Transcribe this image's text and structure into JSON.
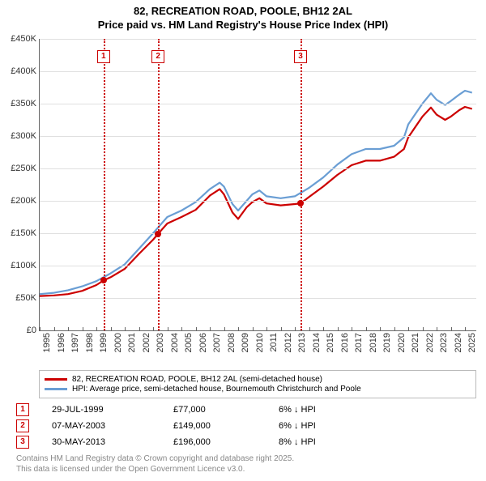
{
  "title_line1": "82, RECREATION ROAD, POOLE, BH12 2AL",
  "title_line2": "Price paid vs. HM Land Registry's House Price Index (HPI)",
  "chart": {
    "type": "line",
    "x_start": 1995,
    "x_end": 2025.8,
    "years": [
      1995,
      1996,
      1997,
      1998,
      1999,
      2000,
      2001,
      2002,
      2003,
      2004,
      2005,
      2006,
      2007,
      2008,
      2009,
      2010,
      2011,
      2012,
      2013,
      2014,
      2015,
      2016,
      2017,
      2018,
      2019,
      2020,
      2021,
      2022,
      2023,
      2024,
      2025
    ],
    "ylim": [
      0,
      450000
    ],
    "ytick_step": 50000,
    "yticklabels": [
      "£0",
      "£50K",
      "£100K",
      "£150K",
      "£200K",
      "£250K",
      "£300K",
      "£350K",
      "£400K",
      "£450K"
    ],
    "grid_color": "#e0e0e0",
    "axis_color": "#666666",
    "background_color": "#ffffff",
    "series": [
      {
        "name": "price_paid",
        "color": "#cc0000",
        "width": 2.2,
        "points": [
          [
            1995,
            53000
          ],
          [
            1996,
            54000
          ],
          [
            1997,
            56000
          ],
          [
            1998,
            61000
          ],
          [
            1999,
            70000
          ],
          [
            1999.5,
            77000
          ],
          [
            2000,
            82000
          ],
          [
            2001,
            95000
          ],
          [
            2002,
            118000
          ],
          [
            2003,
            140000
          ],
          [
            2003.35,
            149000
          ],
          [
            2004,
            165000
          ],
          [
            2005,
            175000
          ],
          [
            2006,
            186000
          ],
          [
            2007,
            208000
          ],
          [
            2007.7,
            218000
          ],
          [
            2008,
            210000
          ],
          [
            2008.6,
            182000
          ],
          [
            2009,
            172000
          ],
          [
            2009.6,
            190000
          ],
          [
            2010,
            198000
          ],
          [
            2010.5,
            204000
          ],
          [
            2011,
            196000
          ],
          [
            2012,
            193000
          ],
          [
            2013,
            195000
          ],
          [
            2013.4,
            196000
          ],
          [
            2014,
            206000
          ],
          [
            2015,
            222000
          ],
          [
            2016,
            240000
          ],
          [
            2017,
            255000
          ],
          [
            2018,
            262000
          ],
          [
            2019,
            262000
          ],
          [
            2020,
            268000
          ],
          [
            2020.7,
            280000
          ],
          [
            2021,
            298000
          ],
          [
            2022,
            330000
          ],
          [
            2022.6,
            344000
          ],
          [
            2023,
            333000
          ],
          [
            2023.6,
            325000
          ],
          [
            2024,
            330000
          ],
          [
            2024.6,
            340000
          ],
          [
            2025,
            345000
          ],
          [
            2025.5,
            342000
          ]
        ]
      },
      {
        "name": "hpi",
        "color": "#6a9ed4",
        "width": 2.2,
        "points": [
          [
            1995,
            56000
          ],
          [
            1996,
            58000
          ],
          [
            1997,
            62000
          ],
          [
            1998,
            68000
          ],
          [
            1999,
            76000
          ],
          [
            2000,
            88000
          ],
          [
            2001,
            102000
          ],
          [
            2002,
            126000
          ],
          [
            2003,
            150000
          ],
          [
            2004,
            175000
          ],
          [
            2005,
            185000
          ],
          [
            2006,
            198000
          ],
          [
            2007,
            218000
          ],
          [
            2007.7,
            228000
          ],
          [
            2008,
            222000
          ],
          [
            2008.6,
            195000
          ],
          [
            2009,
            185000
          ],
          [
            2009.6,
            200000
          ],
          [
            2010,
            210000
          ],
          [
            2010.5,
            216000
          ],
          [
            2011,
            207000
          ],
          [
            2012,
            204000
          ],
          [
            2013,
            207000
          ],
          [
            2014,
            220000
          ],
          [
            2015,
            236000
          ],
          [
            2016,
            256000
          ],
          [
            2017,
            272000
          ],
          [
            2018,
            280000
          ],
          [
            2019,
            280000
          ],
          [
            2020,
            285000
          ],
          [
            2020.7,
            298000
          ],
          [
            2021,
            318000
          ],
          [
            2022,
            350000
          ],
          [
            2022.6,
            366000
          ],
          [
            2023,
            356000
          ],
          [
            2023.6,
            348000
          ],
          [
            2024,
            354000
          ],
          [
            2024.6,
            364000
          ],
          [
            2025,
            370000
          ],
          [
            2025.5,
            367000
          ]
        ]
      }
    ],
    "markers": [
      {
        "n": "1",
        "x": 1999.5,
        "y": 77000
      },
      {
        "n": "2",
        "x": 2003.35,
        "y": 149000
      },
      {
        "n": "3",
        "x": 2013.4,
        "y": 196000
      }
    ]
  },
  "legend": {
    "series1": {
      "label": "82, RECREATION ROAD, POOLE, BH12 2AL (semi-detached house)",
      "color": "#cc0000"
    },
    "series2": {
      "label": "HPI: Average price, semi-detached house, Bournemouth Christchurch and Poole",
      "color": "#6a9ed4"
    }
  },
  "sales": [
    {
      "n": "1",
      "date": "29-JUL-1999",
      "price": "£77,000",
      "hpi": "6% ↓ HPI"
    },
    {
      "n": "2",
      "date": "07-MAY-2003",
      "price": "£149,000",
      "hpi": "6% ↓ HPI"
    },
    {
      "n": "3",
      "date": "30-MAY-2013",
      "price": "£196,000",
      "hpi": "8% ↓ HPI"
    }
  ],
  "footnote_line1": "Contains HM Land Registry data © Crown copyright and database right 2025.",
  "footnote_line2": "This data is licensed under the Open Government Licence v3.0."
}
